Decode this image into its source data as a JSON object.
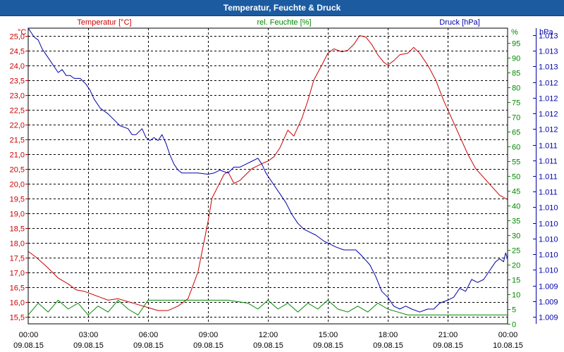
{
  "window": {
    "title": "Temperatur, Feuchte & Druck"
  },
  "colors": {
    "temp": "#cc0000",
    "hum": "#008800",
    "press": "#0000aa",
    "grid": "#000000",
    "title_bg": "#1c5ba0"
  },
  "chart_data": {
    "type": "line",
    "title": "Temperatur, Feuchte & Druck",
    "x_ticks": [
      {
        "time": "00:00",
        "date": "09.08.15"
      },
      {
        "time": "03:00",
        "date": "09.08.15"
      },
      {
        "time": "06:00",
        "date": "09.08.15"
      },
      {
        "time": "09:00",
        "date": "09.08.15"
      },
      {
        "time": "12:00",
        "date": "09.08.15"
      },
      {
        "time": "15:00",
        "date": "09.08.15"
      },
      {
        "time": "18:00",
        "date": "09.08.15"
      },
      {
        "time": "21:00",
        "date": "09.08.15"
      },
      {
        "time": "00:00",
        "date": "10.08.15"
      }
    ],
    "x_range_hours": [
      0,
      24
    ],
    "axes": {
      "temp": {
        "label": "Temperatur [°C]",
        "unit": "°C",
        "range": [
          15.25,
          25.25
        ],
        "ticks": [
          "15,5",
          "16,0",
          "16,5",
          "17,0",
          "17,5",
          "18,0",
          "18,5",
          "19,0",
          "19,5",
          "20,0",
          "20,5",
          "21,0",
          "21,5",
          "22,0",
          "22,5",
          "23,0",
          "23,5",
          "24,0",
          "24,5",
          "25,0"
        ]
      },
      "hum": {
        "label": "rel. Feuchte [%]",
        "unit": "%",
        "range": [
          0,
          100
        ],
        "ticks": [
          "0",
          "5",
          "10",
          "15",
          "20",
          "25",
          "30",
          "35",
          "40",
          "45",
          "50",
          "55",
          "60",
          "65",
          "70",
          "75",
          "80",
          "85",
          "90",
          "95"
        ]
      },
      "press": {
        "label": "Druck [hPa]",
        "unit": "hPa",
        "range": [
          1008.75,
          1013.75
        ],
        "ticks": [
          "1.009",
          "1.009",
          "1.009",
          "1.010",
          "1.010",
          "1.010",
          "1.010",
          "1.010",
          "1.011",
          "1.011",
          "1.011",
          "1.011",
          "1.012",
          "1.012",
          "1.012",
          "1.012",
          "1.013",
          "1.013",
          "1.013"
        ]
      }
    },
    "series": [
      {
        "name": "Temperatur",
        "axis": "temp",
        "x": [
          0,
          0.4,
          0.9,
          1.5,
          2,
          2.4,
          2.8,
          3.2,
          3.6,
          4,
          4.5,
          5,
          5.5,
          6,
          6.5,
          7,
          7.5,
          8,
          8.5,
          9,
          9.2,
          9.5,
          9.8,
          10,
          10.3,
          10.6,
          10.9,
          11.2,
          11.5,
          11.8,
          12,
          12.3,
          12.6,
          13,
          13.3,
          13.7,
          14,
          14.3,
          14.7,
          15,
          15.3,
          15.7,
          16,
          16.3,
          16.6,
          16.9,
          17.2,
          17.5,
          17.8,
          18,
          18.3,
          18.6,
          19,
          19.3,
          19.6,
          20,
          20.4,
          20.8,
          21.2,
          21.6,
          22,
          22.4,
          22.8,
          23.2,
          23.6,
          24
        ],
        "values": [
          17.7,
          17.5,
          17.2,
          16.8,
          16.6,
          16.4,
          16.35,
          16.25,
          16.15,
          16.05,
          16.1,
          16.0,
          15.9,
          15.8,
          15.7,
          15.7,
          15.85,
          16.1,
          17.0,
          18.7,
          19.5,
          19.9,
          20.3,
          20.4,
          20.0,
          20.1,
          20.3,
          20.5,
          20.6,
          20.7,
          20.75,
          20.9,
          21.2,
          21.8,
          21.6,
          22.2,
          22.8,
          23.5,
          24.0,
          24.4,
          24.55,
          24.45,
          24.5,
          24.7,
          25.0,
          24.95,
          24.7,
          24.35,
          24.1,
          24.0,
          24.15,
          24.35,
          24.4,
          24.6,
          24.4,
          24.0,
          23.5,
          22.8,
          22.2,
          21.6,
          21.0,
          20.5,
          20.2,
          19.9,
          19.6,
          19.45
        ]
      },
      {
        "name": "rel. Feuchte",
        "axis": "hum",
        "x": [
          0,
          0.5,
          1,
          1.5,
          2,
          2.5,
          3,
          3.5,
          4,
          4.5,
          5,
          5.5,
          6,
          7,
          8,
          9,
          10,
          11,
          11.5,
          12,
          12.5,
          13,
          13.5,
          14,
          14.5,
          15,
          15.5,
          16,
          16.5,
          17,
          17.5,
          18,
          18.5,
          19,
          20,
          21,
          22,
          23,
          24
        ],
        "values": [
          3,
          7,
          4,
          8,
          5,
          7,
          3,
          6,
          4,
          8,
          5,
          3,
          8,
          8,
          8,
          8,
          8,
          7,
          5,
          8,
          5,
          7,
          4,
          7,
          5,
          8,
          5,
          4,
          6,
          4,
          7,
          5,
          4,
          3,
          3,
          3,
          3,
          3,
          3
        ]
      },
      {
        "name": "Druck",
        "axis": "press",
        "x": [
          0,
          0.3,
          0.5,
          0.7,
          0.9,
          1.1,
          1.3,
          1.5,
          1.7,
          1.9,
          2.1,
          2.3,
          2.6,
          2.9,
          3.1,
          3.3,
          3.6,
          4,
          4.3,
          4.6,
          5,
          5.2,
          5.4,
          5.7,
          5.9,
          6.1,
          6.3,
          6.5,
          6.7,
          6.9,
          7.1,
          7.3,
          7.5,
          7.7,
          8,
          8.5,
          9,
          9.3,
          9.6,
          10,
          10.3,
          10.6,
          10.9,
          11.2,
          11.5,
          11.7,
          11.9,
          12.1,
          12.3,
          12.6,
          12.9,
          13.2,
          13.5,
          13.8,
          14.1,
          14.4,
          14.8,
          15.1,
          15.4,
          15.8,
          16.1,
          16.4,
          16.7,
          17.1,
          17.4,
          17.7,
          18,
          18.3,
          18.6,
          18.9,
          19.2,
          19.6,
          20,
          20.3,
          20.6,
          21,
          21.3,
          21.6,
          21.9,
          22.2,
          22.5,
          22.8,
          23.1,
          23.4,
          23.6,
          23.8,
          23.9,
          24
        ],
        "values": [
          1013.75,
          1013.6,
          1013.55,
          1013.4,
          1013.3,
          1013.2,
          1013.1,
          1013.0,
          1013.05,
          1012.95,
          1012.95,
          1012.9,
          1012.9,
          1012.8,
          1012.7,
          1012.55,
          1012.4,
          1012.3,
          1012.2,
          1012.1,
          1012.05,
          1011.95,
          1011.95,
          1012.05,
          1011.9,
          1011.85,
          1011.9,
          1011.85,
          1011.95,
          1011.8,
          1011.6,
          1011.45,
          1011.35,
          1011.3,
          1011.3,
          1011.3,
          1011.28,
          1011.3,
          1011.35,
          1011.3,
          1011.4,
          1011.4,
          1011.45,
          1011.5,
          1011.55,
          1011.45,
          1011.3,
          1011.2,
          1011.1,
          1010.95,
          1010.8,
          1010.6,
          1010.45,
          1010.35,
          1010.3,
          1010.25,
          1010.15,
          1010.1,
          1010.05,
          1010.0,
          1010.0,
          1010.0,
          1009.9,
          1009.75,
          1009.55,
          1009.3,
          1009.2,
          1009.05,
          1009.0,
          1009.05,
          1009.0,
          1008.95,
          1009.0,
          1009.0,
          1009.1,
          1009.15,
          1009.2,
          1009.35,
          1009.3,
          1009.5,
          1009.45,
          1009.5,
          1009.65,
          1009.8,
          1009.85,
          1009.8,
          1009.95,
          1009.85
        ]
      }
    ]
  }
}
